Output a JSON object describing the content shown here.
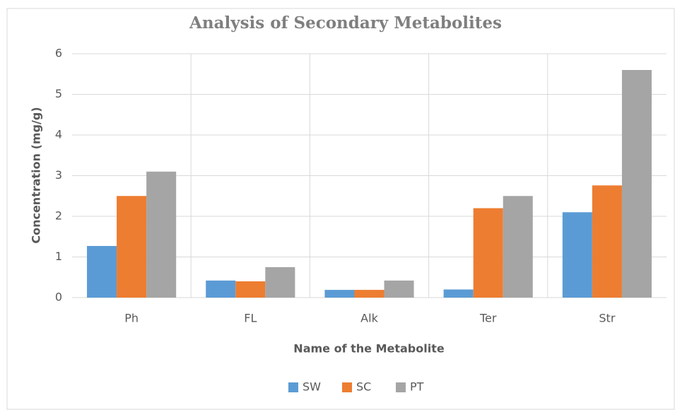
{
  "chart_data": {
    "type": "bar",
    "title": "Analysis of Secondary Metabolites",
    "x_label": "Name of the Metabolite",
    "y_label": "Concentration (mg/g)",
    "categories": [
      "Ph",
      "FL",
      "Alk",
      "Ter",
      "Str"
    ],
    "series": [
      {
        "name": "SW",
        "color": "#5b9bd5",
        "values": [
          1.27,
          0.42,
          0.19,
          0.2,
          2.1
        ]
      },
      {
        "name": "SC",
        "color": "#ed7d31",
        "values": [
          2.5,
          0.4,
          0.19,
          2.2,
          2.76
        ]
      },
      {
        "name": "PT",
        "color": "#a5a5a5",
        "values": [
          3.1,
          0.75,
          0.42,
          2.5,
          5.6
        ]
      }
    ],
    "ylim": [
      0,
      6
    ],
    "yticks": [
      0,
      1,
      2,
      3,
      4,
      5,
      6
    ],
    "grid": true,
    "legend": "bottom"
  }
}
